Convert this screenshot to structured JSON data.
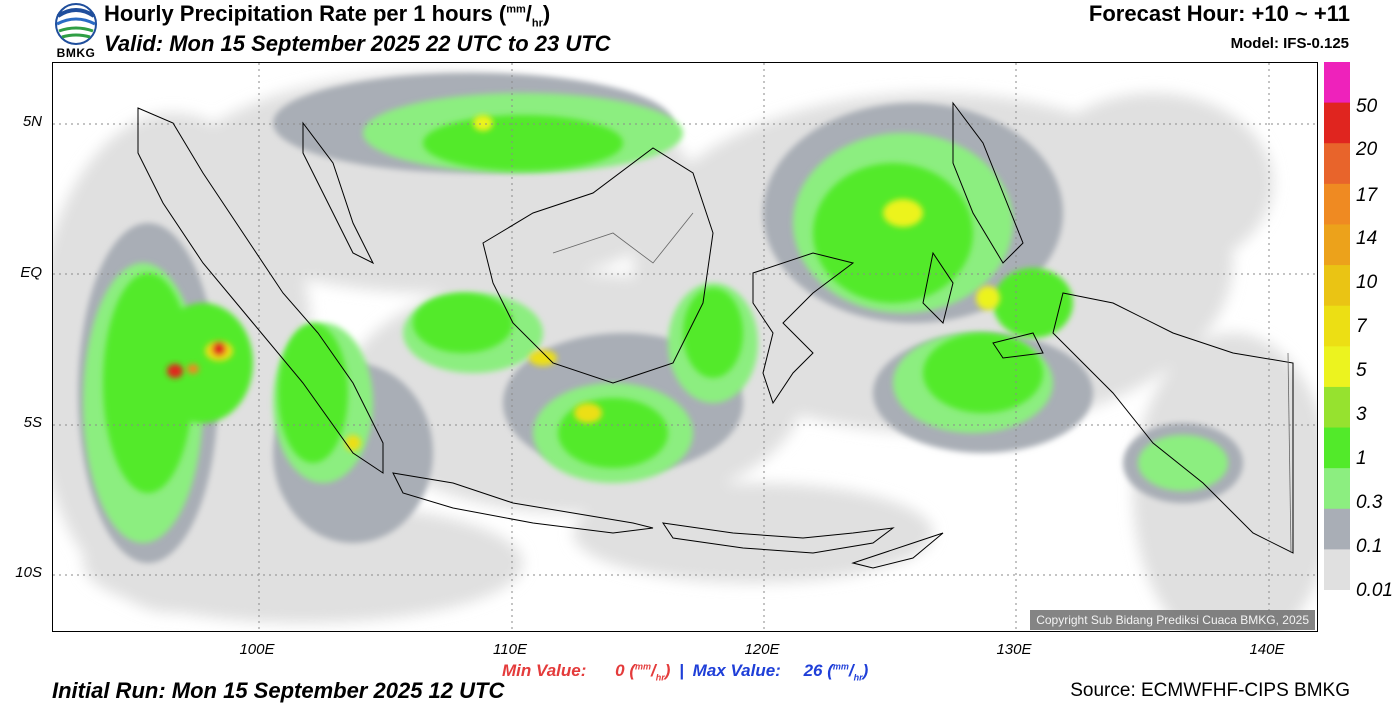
{
  "header": {
    "logo_text": "BMKG",
    "title_main": "Hourly Precipitation Rate per 1 hours (",
    "unit_top": "mm",
    "unit_bottom": "hr",
    "title_close": ")",
    "valid": "Valid: Mon 15 September 2025 22 UTC to 23 UTC",
    "forecast_hour": "Forecast Hour: +10 ~ +11",
    "model": "Model: IFS-0.125"
  },
  "map": {
    "lat_labels": [
      "5N",
      "EQ",
      "5S",
      "10S"
    ],
    "lon_labels": [
      "100E",
      "110E",
      "120E",
      "130E",
      "140E"
    ],
    "copyright": "Copyright Sub Bidang Prediksi Cuaca BMKG, 2025"
  },
  "legend": {
    "labels": [
      "50",
      "20",
      "17",
      "14",
      "10",
      "7",
      "5",
      "3",
      "1",
      "0.3",
      "0.1",
      "0.01"
    ],
    "colors": [
      "#ee22bb",
      "#e0251f",
      "#e8642b",
      "#ef8a22",
      "#eca21b",
      "#eac414",
      "#ecdf14",
      "#ecf31f",
      "#96e22f",
      "#52ea2a",
      "#8cee80",
      "#a9aeb6",
      "#e0e0e0"
    ]
  },
  "footer": {
    "min_label": "Min Value:",
    "min_value": "0",
    "separator": "|",
    "max_label": "Max Value:",
    "max_value": "26",
    "unit_top": "mm",
    "unit_bottom": "hr",
    "initial_run": "Initial Run: Mon 15 September 2025 12 UTC",
    "source": "Source: ECMWFHF-CIPS BMKG"
  }
}
